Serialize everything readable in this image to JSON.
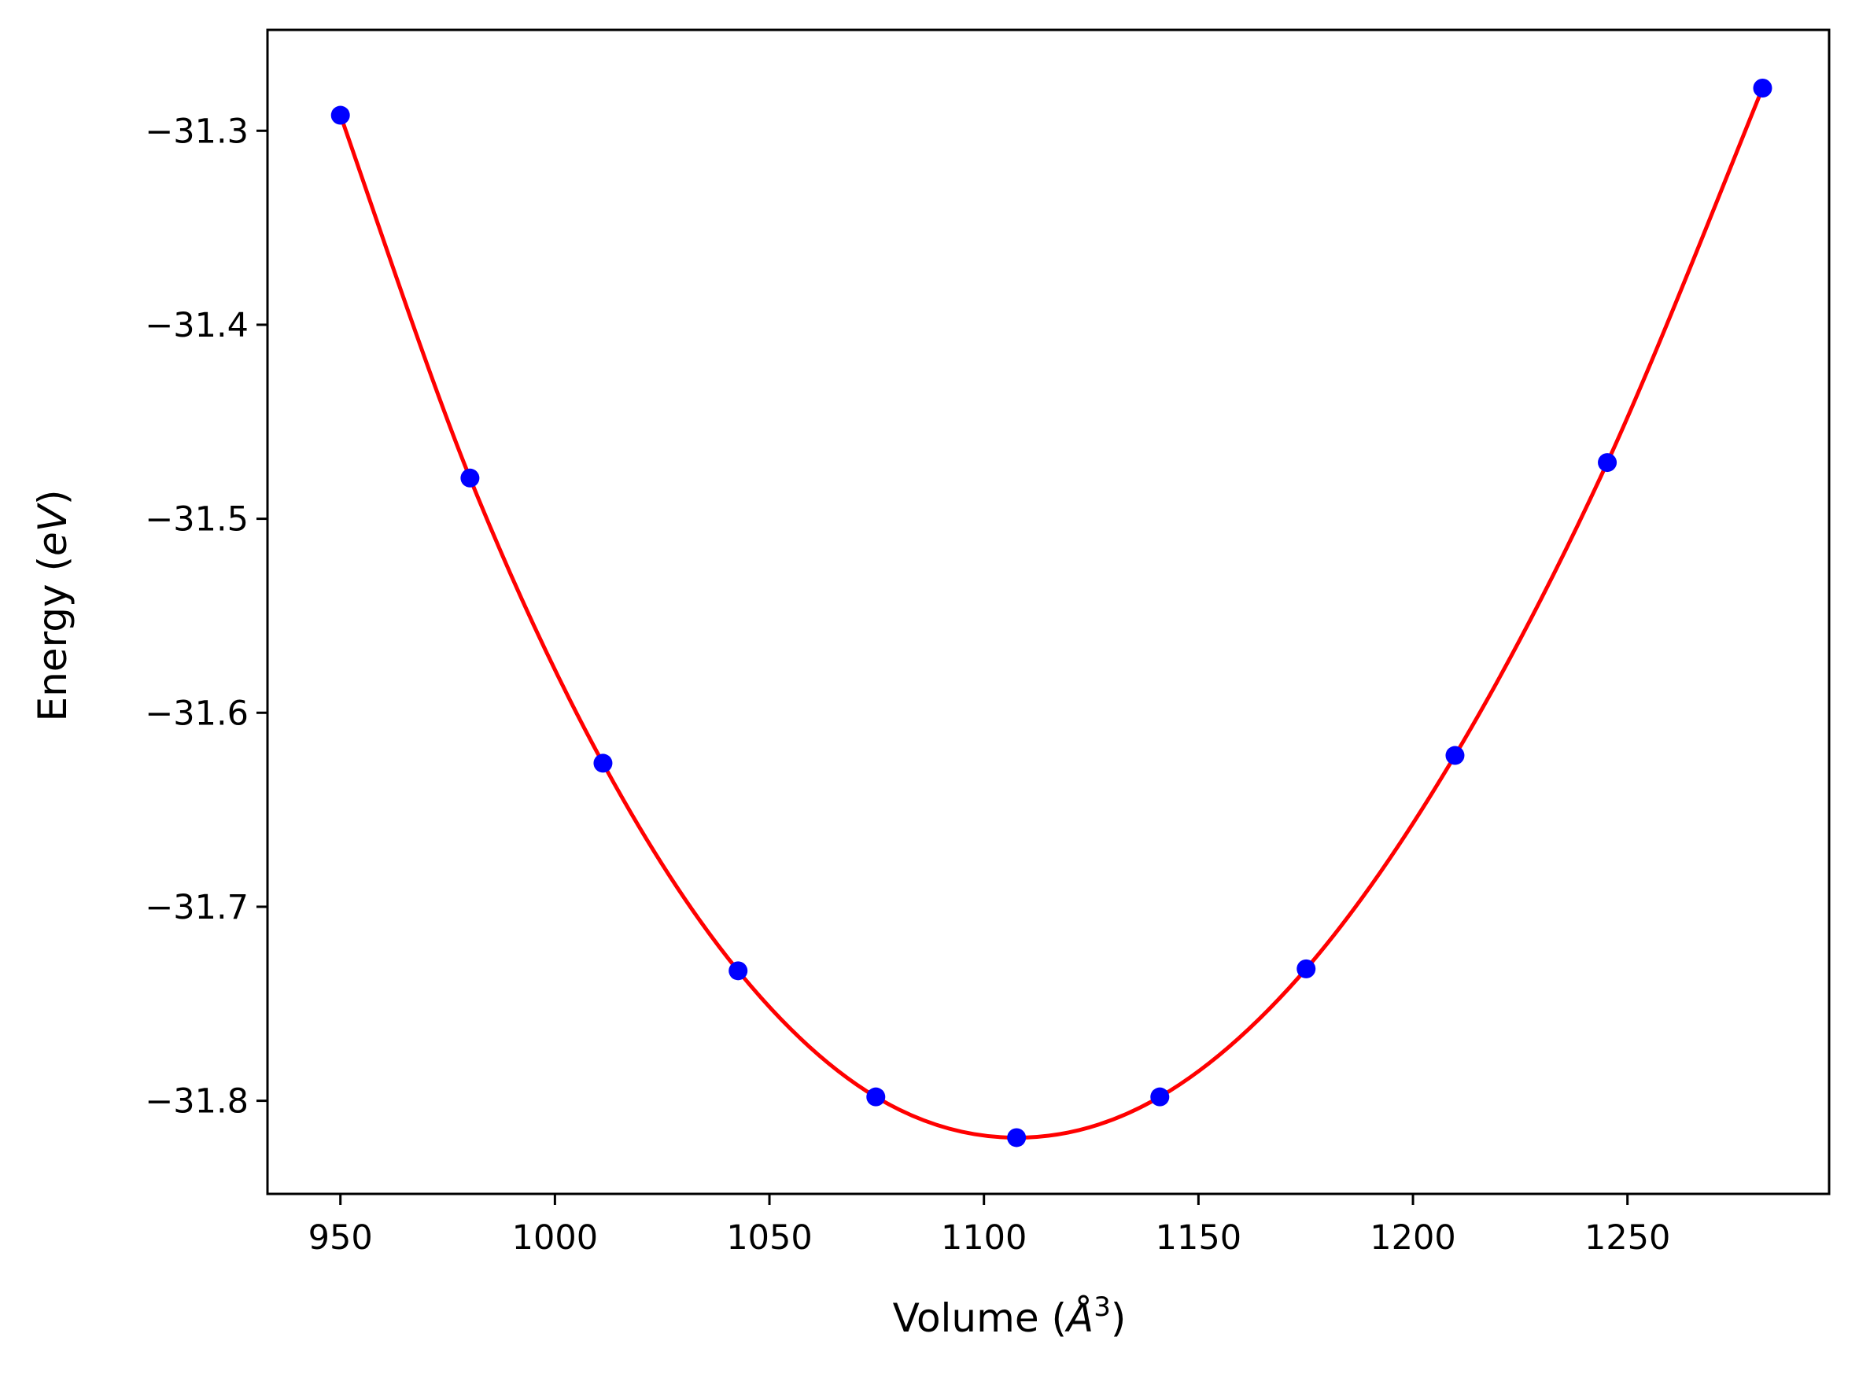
{
  "chart_data": {
    "type": "scatter",
    "title": "",
    "xlabel": "Volume",
    "xlabel_unit": "Å",
    "xlabel_unit_exponent": "3",
    "ylabel": "Energy",
    "ylabel_unit": "eV",
    "xlim": [
      933,
      1297
    ],
    "ylim": [
      -31.848,
      -31.248
    ],
    "xticks": [
      950,
      1000,
      1050,
      1100,
      1150,
      1200,
      1250
    ],
    "yticks": [
      -31.3,
      -31.4,
      -31.5,
      -31.6,
      -31.7,
      -31.8
    ],
    "xtick_labels": [
      "950",
      "1000",
      "1050",
      "1100",
      "1150",
      "1200",
      "1250"
    ],
    "ytick_labels": [
      "−31.3",
      "−31.4",
      "−31.5",
      "−31.6",
      "−31.7",
      "−31.8"
    ],
    "grid": false,
    "legend": "none",
    "series": [
      {
        "kind": "points",
        "color": "#0000ff",
        "x": [
          950.0,
          980.2,
          1011.2,
          1042.7,
          1074.8,
          1107.6,
          1141.0,
          1175.1,
          1209.8,
          1245.3,
          1281.5
        ],
        "y": [
          -31.292,
          -31.479,
          -31.626,
          -31.733,
          -31.798,
          -31.819,
          -31.798,
          -31.732,
          -31.622,
          -31.471,
          -31.278
        ]
      },
      {
        "kind": "fit-curve",
        "color": "#ff0000",
        "x": [
          950.0,
          980.2,
          1011.2,
          1042.7,
          1074.8,
          1107.6,
          1141.0,
          1175.1,
          1209.8,
          1245.3,
          1281.5
        ],
        "y": [
          -31.292,
          -31.479,
          -31.626,
          -31.733,
          -31.798,
          -31.819,
          -31.798,
          -31.732,
          -31.622,
          -31.471,
          -31.278
        ]
      }
    ]
  }
}
